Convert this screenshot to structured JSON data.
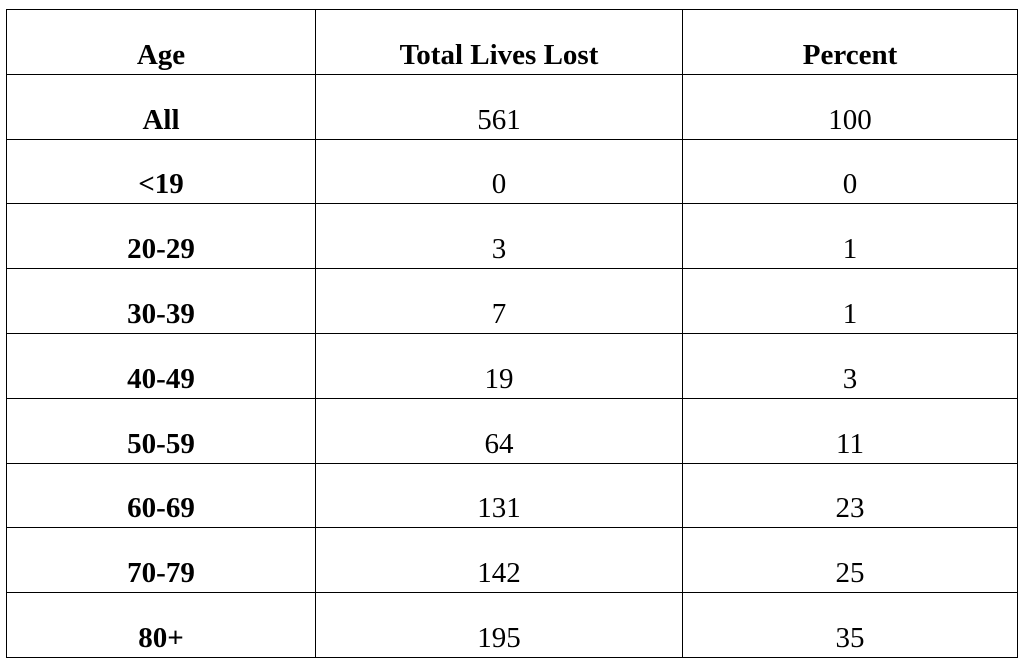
{
  "table": {
    "headers": [
      "Age",
      "Total Lives Lost",
      "Percent"
    ],
    "rows": [
      [
        "All",
        "561",
        "100"
      ],
      [
        "<19",
        "0",
        "0"
      ],
      [
        "20-29",
        "3",
        "1"
      ],
      [
        "30-39",
        "7",
        "1"
      ],
      [
        "40-49",
        "19",
        "3"
      ],
      [
        "50-59",
        "64",
        "11"
      ],
      [
        "60-69",
        "131",
        "23"
      ],
      [
        "70-79",
        "142",
        "25"
      ],
      [
        "80+",
        "195",
        "35"
      ]
    ]
  }
}
